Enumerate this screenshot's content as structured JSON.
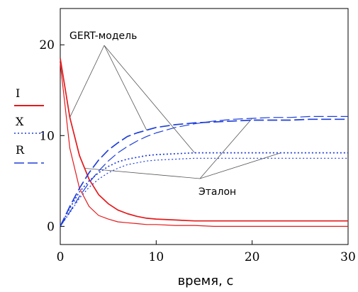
{
  "chart_data": {
    "type": "line",
    "title": "",
    "xlabel": "время, с",
    "ylabel": "",
    "xlim": [
      0,
      30
    ],
    "ylim": [
      -2,
      24
    ],
    "x_ticks": [
      0,
      10,
      20,
      30
    ],
    "y_ticks": [
      0,
      10,
      20
    ],
    "grid": false,
    "legend_position": "left",
    "legend": [
      {
        "label": "I",
        "color": "#e41a1c",
        "dash": "solid"
      },
      {
        "label": "X",
        "color": "#1f3fd9",
        "dash": "dotted"
      },
      {
        "label": "R",
        "color": "#1f3fd9",
        "dash": "longdash"
      }
    ],
    "annotations": [
      {
        "text": "GERT-модель",
        "points_to": [
          "I",
          "X",
          "R"
        ]
      },
      {
        "text": "Эталон",
        "points_to": [
          "I",
          "X",
          "R"
        ]
      }
    ],
    "x": [
      0,
      1,
      2,
      3,
      4,
      5,
      6,
      7,
      8,
      9,
      10,
      12,
      14,
      16,
      18,
      20,
      22,
      24,
      26,
      28,
      30
    ],
    "series": [
      {
        "name": "I",
        "model": "GERT",
        "color": "#e41a1c",
        "dash": "solid",
        "values": [
          18.5,
          12.0,
          7.8,
          5.2,
          3.5,
          2.5,
          1.8,
          1.4,
          1.1,
          0.9,
          0.8,
          0.7,
          0.6,
          0.6,
          0.6,
          0.6,
          0.6,
          0.6,
          0.6,
          0.6,
          0.6
        ]
      },
      {
        "name": "I",
        "model": "Эталон",
        "color": "#e41a1c",
        "dash": "solid",
        "values": [
          18.0,
          8.6,
          4.2,
          2.2,
          1.2,
          0.8,
          0.5,
          0.4,
          0.3,
          0.2,
          0.2,
          0.1,
          0.1,
          0.0,
          0.0,
          0.0,
          0.0,
          0.0,
          0.0,
          0.0,
          0.0
        ]
      },
      {
        "name": "X",
        "model": "GERT",
        "color": "#1f3fd9",
        "dash": "dotted",
        "values": [
          0.0,
          2.0,
          3.8,
          5.0,
          5.9,
          6.6,
          7.1,
          7.4,
          7.6,
          7.8,
          7.9,
          8.0,
          8.1,
          8.1,
          8.1,
          8.1,
          8.1,
          8.1,
          8.1,
          8.1,
          8.1
        ]
      },
      {
        "name": "X",
        "model": "Эталон",
        "color": "#1f3fd9",
        "dash": "dotted",
        "values": [
          0.0,
          1.5,
          3.1,
          4.3,
          5.2,
          5.9,
          6.4,
          6.8,
          7.0,
          7.2,
          7.3,
          7.4,
          7.5,
          7.5,
          7.5,
          7.5,
          7.5,
          7.5,
          7.5,
          7.5,
          7.5
        ]
      },
      {
        "name": "R",
        "model": "GERT",
        "color": "#1f3fd9",
        "dash": "longdash",
        "values": [
          0.0,
          2.2,
          4.2,
          5.9,
          7.3,
          8.4,
          9.2,
          9.9,
          10.3,
          10.6,
          10.9,
          11.2,
          11.4,
          11.5,
          11.6,
          11.7,
          11.7,
          11.7,
          11.8,
          11.8,
          11.8
        ]
      },
      {
        "name": "R",
        "model": "Эталон",
        "color": "#1f3fd9",
        "dash": "longdash",
        "values": [
          0.0,
          1.6,
          3.3,
          4.8,
          6.1,
          7.2,
          8.1,
          8.8,
          9.4,
          9.9,
          10.3,
          10.9,
          11.3,
          11.6,
          11.8,
          11.9,
          12.0,
          12.0,
          12.1,
          12.1,
          12.1
        ]
      }
    ]
  }
}
